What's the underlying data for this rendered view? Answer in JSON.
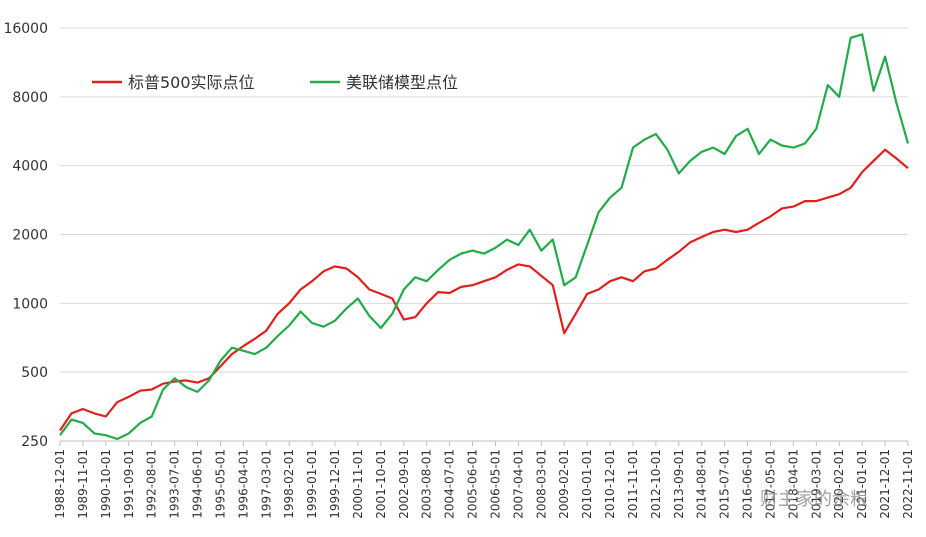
{
  "chart_data": {
    "type": "line",
    "categories": [
      "1988-12-01",
      null,
      "1989-11-01",
      null,
      "1990-10-01",
      null,
      "1991-09-01",
      null,
      "1992-08-01",
      null,
      "1993-07-01",
      null,
      "1994-06-01",
      null,
      "1995-05-01",
      null,
      "1996-04-01",
      null,
      "1997-03-01",
      null,
      "1998-02-01",
      null,
      "1999-01-01",
      null,
      "1999-12-01",
      null,
      "2000-11-01",
      null,
      "2001-10-01",
      null,
      "2002-09-01",
      null,
      "2003-08-01",
      null,
      "2004-07-01",
      null,
      "2005-06-01",
      null,
      "2006-05-01",
      null,
      "2007-04-01",
      null,
      "2008-03-01",
      null,
      "2009-02-01",
      null,
      "2010-01-01",
      null,
      "2010-12-01",
      null,
      "2011-11-01",
      null,
      "2012-10-01",
      null,
      "2013-09-01",
      null,
      "2014-08-01",
      null,
      "2015-07-01",
      null,
      "2016-06-01",
      null,
      "2017-05-01",
      null,
      "2018-04-01",
      null,
      "2019-03-01",
      null,
      "2020-02-01",
      null,
      "2021-01-01",
      null,
      "2021-12-01",
      null,
      "2022-11-01"
    ],
    "series": [
      {
        "name": "标普500实际点位",
        "color": "#e0201c",
        "values": [
          278,
          330,
          345,
          330,
          320,
          370,
          390,
          415,
          420,
          445,
          455,
          460,
          450,
          470,
          530,
          600,
          650,
          700,
          760,
          900,
          1000,
          1150,
          1250,
          1380,
          1450,
          1420,
          1300,
          1150,
          1100,
          1050,
          850,
          870,
          1000,
          1120,
          1110,
          1180,
          1200,
          1250,
          1300,
          1400,
          1480,
          1450,
          1320,
          1200,
          740,
          900,
          1100,
          1150,
          1250,
          1300,
          1250,
          1380,
          1420,
          1550,
          1680,
          1850,
          1950,
          2050,
          2100,
          2050,
          2100,
          2250,
          2400,
          2600,
          2650,
          2800,
          2800,
          2900,
          3000,
          3200,
          3750,
          4200,
          4700,
          4300,
          3900
        ]
      },
      {
        "name": "美联储模型点位",
        "color": "#22ab4a",
        "values": [
          265,
          310,
          300,
          270,
          265,
          255,
          270,
          300,
          320,
          420,
          470,
          430,
          410,
          460,
          560,
          640,
          620,
          600,
          640,
          720,
          800,
          920,
          820,
          790,
          840,
          950,
          1050,
          880,
          780,
          900,
          1150,
          1300,
          1250,
          1400,
          1550,
          1650,
          1700,
          1650,
          1750,
          1900,
          1800,
          2100,
          1700,
          1900,
          1200,
          1300,
          1800,
          2500,
          2900,
          3200,
          4800,
          5200,
          5500,
          4700,
          3700,
          4200,
          4600,
          4800,
          4500,
          5400,
          5800,
          4500,
          5200,
          4900,
          4800,
          5000,
          5800,
          9000,
          8000,
          14500,
          15000,
          8500,
          12000,
          7500,
          5000
        ]
      }
    ],
    "log_scale": true,
    "ylim": [
      250,
      16000
    ],
    "yticks": [
      250,
      500,
      1000,
      2000,
      4000,
      8000,
      16000
    ],
    "grid": true,
    "legend": "upper-left",
    "watermark": "财主家的余粮"
  }
}
